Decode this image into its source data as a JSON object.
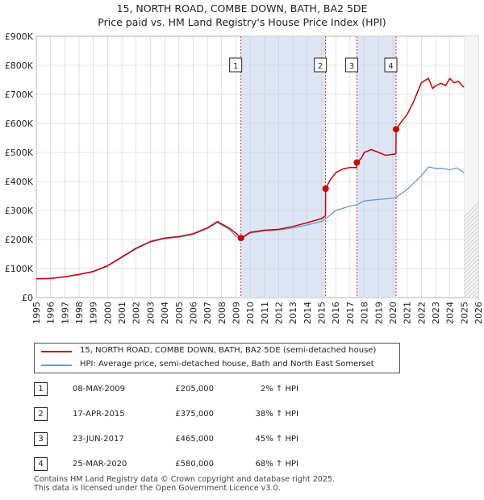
{
  "title_line1": "15, NORTH ROAD, COMBE DOWN, BATH, BA2 5DE",
  "title_line2": "Price paid vs. HM Land Registry's House Price Index (HPI)",
  "colors": {
    "property": "#cc0000",
    "hpi": "#6699cc",
    "shade": "#dde6f7",
    "grid": "#cccccc"
  },
  "legend": {
    "property_label": "15, NORTH ROAD, COMBE DOWN, BATH, BA2 5DE (semi-detached house)",
    "hpi_label": "HPI: Average price, semi-detached house, Bath and North East Somerset"
  },
  "sales": [
    {
      "num": "1",
      "date": "08-MAY-2009",
      "price": "£205,000",
      "hpi_change": "2% ↑ HPI"
    },
    {
      "num": "2",
      "date": "17-APR-2015",
      "price": "£375,000",
      "hpi_change": "38% ↑ HPI"
    },
    {
      "num": "3",
      "date": "23-JUN-2017",
      "price": "£465,000",
      "hpi_change": "45% ↑ HPI"
    },
    {
      "num": "4",
      "date": "25-MAR-2020",
      "price": "£580,000",
      "hpi_change": "68% ↑ HPI"
    }
  ],
  "footer_line1": "Contains HM Land Registry data © Crown copyright and database right 2025.",
  "footer_line2": "This data is licensed under the Open Government Licence v3.0.",
  "chart_data": {
    "type": "line",
    "title": "15, NORTH ROAD, COMBE DOWN, BATH, BA2 5DE — Price paid vs. HM Land Registry's House Price Index (HPI)",
    "xlabel": "",
    "ylabel": "",
    "xlim": [
      1995,
      2026
    ],
    "ylim": [
      0,
      900000
    ],
    "x_ticks": [
      1995,
      1996,
      1997,
      1998,
      1999,
      2000,
      2001,
      2002,
      2003,
      2004,
      2005,
      2006,
      2007,
      2008,
      2009,
      2010,
      2011,
      2012,
      2013,
      2014,
      2015,
      2016,
      2017,
      2018,
      2019,
      2020,
      2021,
      2022,
      2023,
      2024,
      2025,
      2026
    ],
    "y_ticks": [
      {
        "value": 0,
        "label": "£0"
      },
      {
        "value": 100000,
        "label": "£100K"
      },
      {
        "value": 200000,
        "label": "£200K"
      },
      {
        "value": 300000,
        "label": "£300K"
      },
      {
        "value": 400000,
        "label": "£400K"
      },
      {
        "value": 500000,
        "label": "£500K"
      },
      {
        "value": 600000,
        "label": "£600K"
      },
      {
        "value": 700000,
        "label": "£700K"
      },
      {
        "value": 800000,
        "label": "£800K"
      },
      {
        "value": 900000,
        "label": "£900K"
      }
    ],
    "grid": true,
    "shaded_ranges": [
      [
        2009.35,
        2015.29
      ],
      [
        2017.48,
        2020.23
      ]
    ],
    "future_hatch_start": 2025.0,
    "sale_markers": [
      {
        "label": "1",
        "x": 2009.35,
        "y": 205000
      },
      {
        "label": "2",
        "x": 2015.29,
        "y": 375000
      },
      {
        "label": "3",
        "x": 2017.48,
        "y": 465000
      },
      {
        "label": "4",
        "x": 2020.23,
        "y": 580000
      }
    ],
    "series": [
      {
        "name": "15, NORTH ROAD, COMBE DOWN, BATH, BA2 5DE (semi-detached house)",
        "x": [
          1995,
          1996,
          1997,
          1998,
          1999,
          2000,
          2001,
          2002,
          2003,
          2004,
          2005,
          2006,
          2007,
          2007.7,
          2008.5,
          2009.0,
          2009.35,
          2010,
          2011,
          2012,
          2013,
          2014,
          2015.0,
          2015.28,
          2015.29,
          2015.6,
          2016,
          2016.5,
          2017,
          2017.47,
          2017.48,
          2017.8,
          2018,
          2018.5,
          2019,
          2019.5,
          2020.22,
          2020.23,
          2020.7,
          2021,
          2021.5,
          2022,
          2022.5,
          2022.8,
          2023,
          2023.4,
          2023.7,
          2024,
          2024.3,
          2024.6,
          2024.9,
          2025.0
        ],
        "values": [
          65000,
          66000,
          72000,
          80000,
          90000,
          110000,
          140000,
          170000,
          193000,
          205000,
          210000,
          220000,
          240000,
          262000,
          240000,
          222000,
          205000,
          225000,
          232000,
          235000,
          245000,
          258000,
          272000,
          282000,
          375000,
          405000,
          430000,
          443000,
          448000,
          448000,
          465000,
          480000,
          500000,
          510000,
          500000,
          490000,
          495000,
          580000,
          612000,
          630000,
          680000,
          740000,
          755000,
          720000,
          730000,
          738000,
          730000,
          755000,
          740000,
          745000,
          728000,
          725000
        ]
      },
      {
        "name": "HPI: Average price, semi-detached house, Bath and North East Somerset",
        "x": [
          1995,
          1996,
          1997,
          1998,
          1999,
          2000,
          2001,
          2002,
          2003,
          2004,
          2005,
          2006,
          2007,
          2007.7,
          2008.5,
          2009.0,
          2009.35,
          2010,
          2011,
          2012,
          2013,
          2014,
          2015,
          2015.29,
          2016,
          2017,
          2017.48,
          2018,
          2019,
          2020,
          2020.23,
          2021,
          2022,
          2022.5,
          2023,
          2023.5,
          2024,
          2024.5,
          2025.0
        ],
        "values": [
          64000,
          65000,
          71000,
          79000,
          89000,
          108000,
          138000,
          168000,
          191000,
          203000,
          208000,
          218000,
          238000,
          258000,
          236000,
          212000,
          201000,
          222000,
          230000,
          233000,
          240000,
          250000,
          262000,
          272000,
          300000,
          315000,
          320000,
          333000,
          338000,
          342000,
          345000,
          372000,
          420000,
          450000,
          445000,
          445000,
          440000,
          447000,
          430000
        ]
      }
    ]
  }
}
